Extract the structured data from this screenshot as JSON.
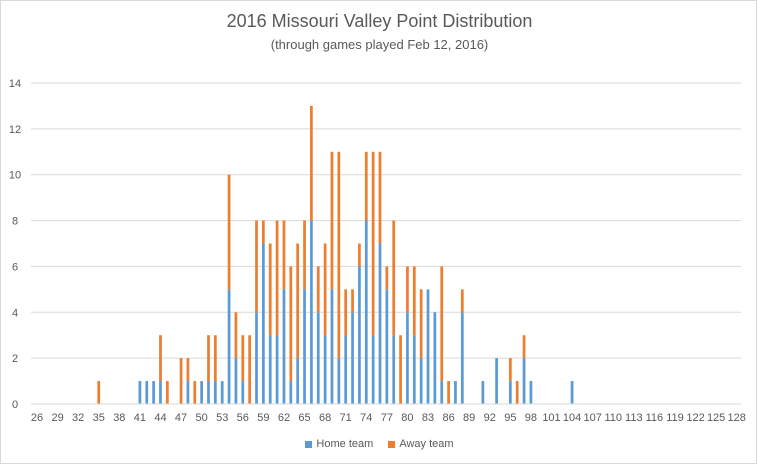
{
  "chart_data": {
    "type": "bar",
    "stacked": true,
    "title": "2016 Missouri Valley Point Distribution",
    "subtitle": "(through games played Feb 12, 2016)",
    "xlabel": "",
    "ylabel": "",
    "ylim": [
      0,
      14
    ],
    "yticks": [
      "0",
      "2",
      "4",
      "6",
      "8",
      "10",
      "12",
      "14"
    ],
    "xticks": [
      "26",
      "29",
      "32",
      "35",
      "38",
      "41",
      "44",
      "47",
      "50",
      "53",
      "56",
      "59",
      "62",
      "65",
      "68",
      "71",
      "74",
      "77",
      "80",
      "83",
      "86",
      "89",
      "92",
      "95",
      "98",
      "101",
      "104",
      "107",
      "110",
      "113",
      "116",
      "119",
      "122",
      "125",
      "128"
    ],
    "x": [
      35,
      41,
      42,
      43,
      44,
      45,
      47,
      48,
      49,
      50,
      51,
      52,
      53,
      54,
      55,
      56,
      57,
      58,
      59,
      60,
      61,
      62,
      63,
      64,
      65,
      66,
      67,
      68,
      69,
      70,
      71,
      72,
      73,
      74,
      75,
      76,
      77,
      78,
      79,
      80,
      81,
      82,
      83,
      84,
      85,
      86,
      87,
      88,
      91,
      93,
      95,
      96,
      97,
      98,
      104
    ],
    "series": [
      {
        "name": "Home team",
        "color": "#5b9bd5",
        "values": [
          0,
          1,
          1,
          1,
          1,
          0,
          0,
          1,
          0,
          1,
          1,
          1,
          1,
          5,
          2,
          1,
          0,
          4,
          7,
          3,
          3,
          5,
          1,
          2,
          5,
          8,
          4,
          3,
          5,
          2,
          3,
          4,
          6,
          8,
          3,
          7,
          5,
          3,
          0,
          4,
          3,
          2,
          5,
          4,
          1,
          0,
          1,
          4,
          1,
          2,
          1,
          0,
          2,
          1,
          1
        ]
      },
      {
        "name": "Away team",
        "color": "#ed7d31",
        "values": [
          1,
          0,
          0,
          0,
          2,
          1,
          2,
          1,
          1,
          0,
          2,
          2,
          0,
          5,
          2,
          2,
          3,
          4,
          1,
          4,
          5,
          3,
          5,
          5,
          3,
          5,
          2,
          4,
          6,
          9,
          2,
          1,
          1,
          3,
          8,
          4,
          1,
          5,
          3,
          2,
          3,
          3,
          0,
          0,
          5,
          1,
          0,
          1,
          0,
          0,
          1,
          1,
          1,
          0,
          0
        ]
      }
    ],
    "grid": true,
    "legend": "bottom"
  }
}
